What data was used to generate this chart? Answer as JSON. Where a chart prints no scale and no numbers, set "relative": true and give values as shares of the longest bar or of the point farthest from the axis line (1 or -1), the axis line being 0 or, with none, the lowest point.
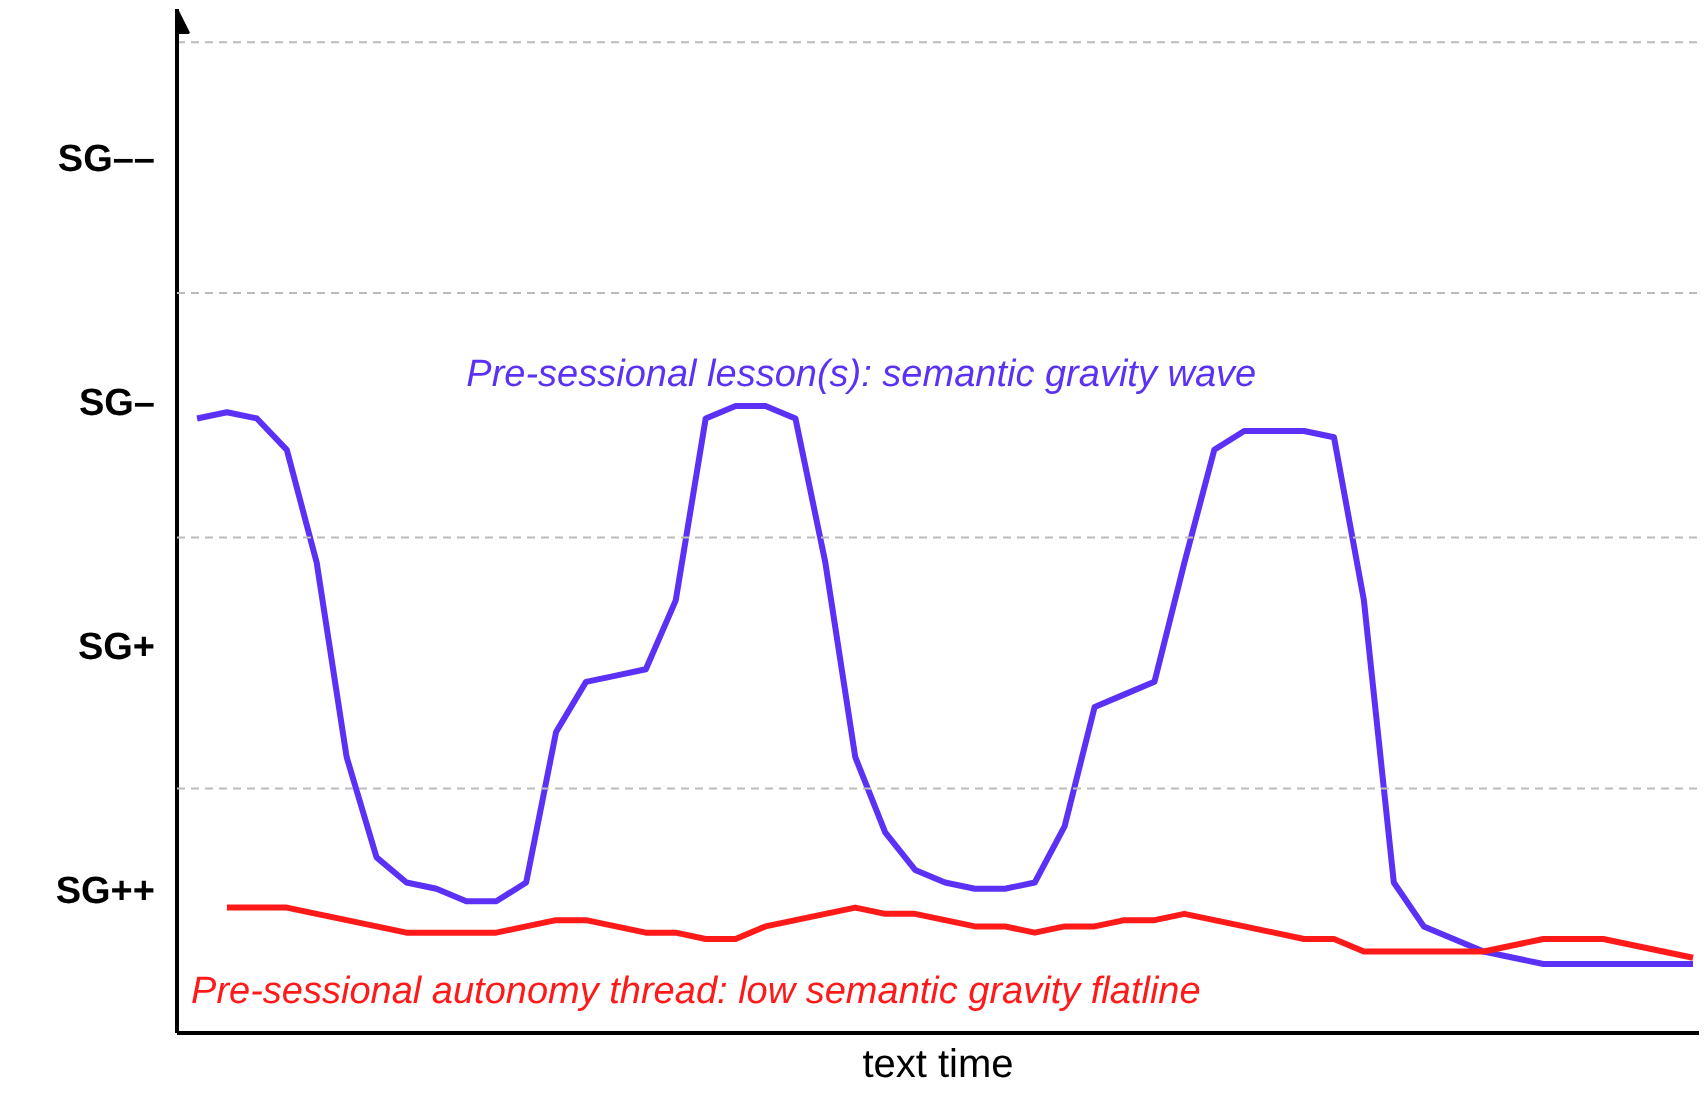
{
  "chart_data": {
    "type": "line",
    "xlabel": "text time",
    "relative": true,
    "categories": [
      null,
      null,
      null,
      null,
      null,
      null,
      null,
      null,
      null,
      null,
      null,
      null,
      null,
      null,
      null,
      null,
      null,
      null,
      null,
      null,
      null,
      null,
      null,
      null,
      null,
      null,
      null,
      null,
      null,
      null,
      null,
      null,
      null,
      null,
      null,
      null,
      null,
      null,
      null,
      null,
      null,
      null,
      null,
      null,
      null,
      null,
      null,
      null,
      null,
      null,
      null
    ],
    "annotations": [
      "SG––",
      "SG–",
      "SG+",
      "SG++"
    ],
    "ref_lines": [
      {
        "axis": "y",
        "value": 0.39,
        "color": "#bbbbbb",
        "line_style": "dashed"
      },
      {
        "axis": "y",
        "value": 0.79,
        "color": "#bbbbbb",
        "line_style": "dashed"
      },
      {
        "axis": "y",
        "value": 1.18,
        "color": "#bbbbbb",
        "line_style": "dashed"
      },
      {
        "axis": "y",
        "value": 1.58,
        "color": "#bbbbbb",
        "line_style": "dashed"
      }
    ],
    "marker": "none",
    "line_style": "solid",
    "series": [
      {
        "name": "Pre-sessional lesson(s): semantic gravity wave",
        "color": "#5b32f5",
        "values": [
          0.98,
          0.99,
          0.98,
          0.93,
          0.75,
          0.44,
          0.28,
          0.24,
          0.23,
          0.21,
          0.21,
          0.24,
          0.48,
          0.56,
          0.57,
          0.58,
          0.69,
          0.98,
          1.0,
          1.0,
          0.98,
          0.75,
          0.44,
          0.32,
          0.26,
          0.24,
          0.23,
          0.23,
          0.24,
          0.33,
          0.52,
          0.54,
          0.56,
          0.75,
          0.93,
          0.96,
          0.96,
          0.96,
          0.95,
          0.69,
          0.24,
          0.17,
          0.15,
          0.13,
          0.12,
          0.11,
          0.11,
          0.11,
          0.11,
          0.11,
          0.11
        ]
      },
      {
        "name": "Pre-sessional autonomy thread: low semantic gravity flatline",
        "color": "#ff1a1a",
        "values": [
          null,
          0.2,
          0.2,
          0.2,
          0.19,
          0.18,
          0.17,
          0.16,
          0.16,
          0.16,
          0.16,
          0.17,
          0.18,
          0.18,
          0.17,
          0.16,
          0.16,
          0.15,
          0.15,
          0.17,
          0.18,
          0.19,
          0.2,
          0.19,
          0.19,
          0.18,
          0.17,
          0.17,
          0.16,
          0.17,
          0.17,
          0.18,
          0.18,
          0.19,
          0.18,
          0.17,
          0.16,
          0.15,
          0.15,
          0.13,
          0.13,
          0.13,
          0.13,
          0.13,
          0.14,
          0.15,
          0.15,
          0.15,
          0.14,
          0.13,
          0.12
        ]
      }
    ]
  }
}
